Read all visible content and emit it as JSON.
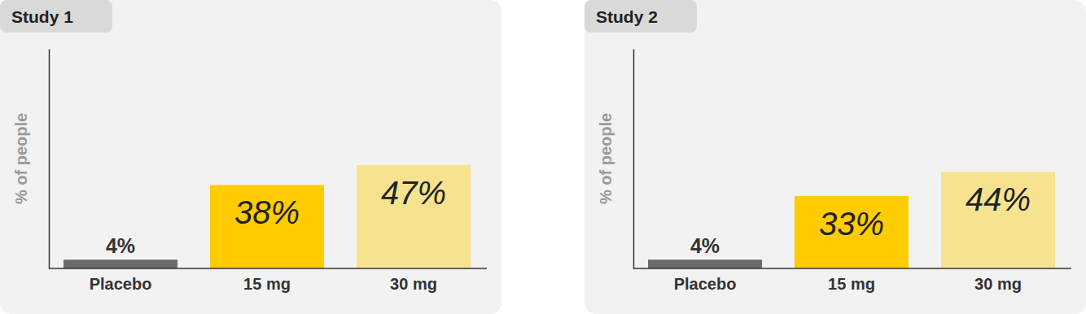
{
  "chart_data": [
    {
      "type": "bar",
      "title": "Study 1",
      "y_label": "% of people",
      "categories": [
        "Placebo",
        "15 mg",
        "30 mg"
      ],
      "values": [
        4,
        38,
        47
      ],
      "value_labels": [
        "4%",
        "38%",
        "47%"
      ],
      "colors": [
        "#6b6b6b",
        "#ffcc00",
        "#f7e38f"
      ],
      "ylim": [
        0,
        100
      ],
      "yticks": [],
      "data_labels": true,
      "tick_labels": "x"
    },
    {
      "type": "bar",
      "title": "Study 2",
      "y_label": "% of people",
      "categories": [
        "Placebo",
        "15 mg",
        "30 mg"
      ],
      "values": [
        4,
        33,
        44
      ],
      "value_labels": [
        "4%",
        "33%",
        "44%"
      ],
      "colors": [
        "#6b6b6b",
        "#ffcc00",
        "#f7e38f"
      ],
      "ylim": [
        0,
        100
      ],
      "yticks": [],
      "data_labels": true,
      "tick_labels": "x"
    }
  ]
}
